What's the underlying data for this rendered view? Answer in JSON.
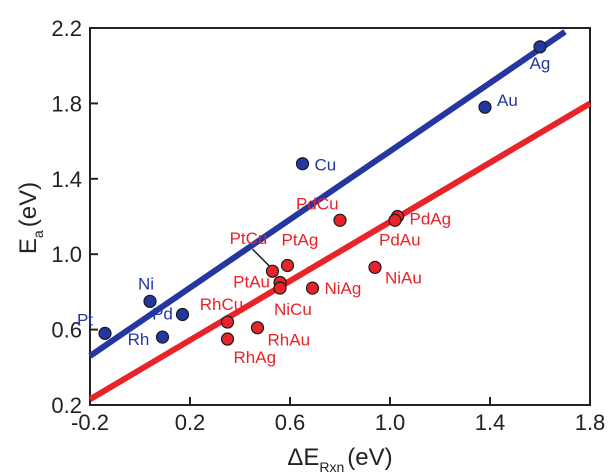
{
  "chart_data": {
    "type": "scatter",
    "title": "",
    "xlabel": {
      "main": "ΔE",
      "sub": "Rxn",
      "unit": "(eV)"
    },
    "ylabel": {
      "main": "E",
      "sub": "a",
      "unit": "(eV)"
    },
    "xlim": [
      -0.2,
      1.8
    ],
    "ylim": [
      0.2,
      2.2
    ],
    "xticks": [
      "-0.2",
      "0.2",
      "0.6",
      "1.0",
      "1.4",
      "1.8"
    ],
    "yticks": [
      "0.2",
      "0.6",
      "1.0",
      "1.4",
      "1.8",
      "2.2"
    ],
    "grid": false,
    "series": [
      {
        "color": "#2436a0",
        "points": [
          {
            "label": "Pt",
            "x": -0.14,
            "y": 0.58
          },
          {
            "label": "Ni",
            "x": 0.04,
            "y": 0.75
          },
          {
            "label": "Pd",
            "x": 0.17,
            "y": 0.68
          },
          {
            "label": "Rh",
            "x": 0.09,
            "y": 0.56
          },
          {
            "label": "Cu",
            "x": 0.65,
            "y": 1.48
          },
          {
            "label": "Au",
            "x": 1.38,
            "y": 1.78
          },
          {
            "label": "Ag",
            "x": 1.6,
            "y": 2.1
          }
        ],
        "fit": {
          "x": [
            -0.2,
            1.7
          ],
          "y": [
            0.46,
            2.18
          ]
        }
      },
      {
        "color": "#e8232a",
        "points": [
          {
            "label": "PtCu",
            "x": 0.53,
            "y": 0.91
          },
          {
            "label": "PtAg",
            "x": 0.59,
            "y": 0.94
          },
          {
            "label": "PtAu",
            "x": 0.56,
            "y": 0.85
          },
          {
            "label": "NiCu",
            "x": 0.56,
            "y": 0.82
          },
          {
            "label": "NiAg",
            "x": 0.69,
            "y": 0.82
          },
          {
            "label": "NiAu",
            "x": 0.94,
            "y": 0.93
          },
          {
            "label": "PdCu",
            "x": 0.8,
            "y": 1.18
          },
          {
            "label": "PdAg",
            "x": 1.03,
            "y": 1.2
          },
          {
            "label": "PdAu",
            "x": 1.02,
            "y": 1.18
          },
          {
            "label": "RhCu",
            "x": 0.35,
            "y": 0.64
          },
          {
            "label": "RhAu",
            "x": 0.47,
            "y": 0.61
          },
          {
            "label": "RhAg",
            "x": 0.35,
            "y": 0.55
          }
        ],
        "fit": {
          "x": [
            -0.2,
            1.8
          ],
          "y": [
            0.23,
            1.8
          ]
        }
      }
    ]
  }
}
